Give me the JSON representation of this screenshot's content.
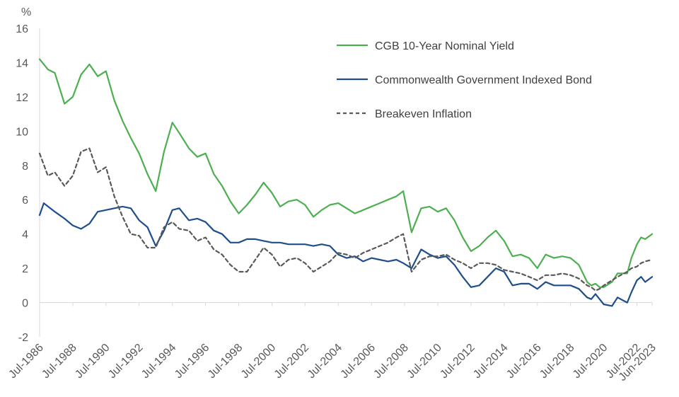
{
  "chart_data": {
    "type": "line",
    "ylabel": "%",
    "ylim": [
      -2,
      16
    ],
    "yticks": [
      -2,
      0,
      2,
      4,
      6,
      8,
      10,
      12,
      14,
      16
    ],
    "xlim": [
      "1986-07",
      "2023-06"
    ],
    "xticks": [
      {
        "date": "1986-07",
        "label": "Jul-1986"
      },
      {
        "date": "1988-07",
        "label": "Jul-1988"
      },
      {
        "date": "1990-07",
        "label": "Jul-1990"
      },
      {
        "date": "1992-07",
        "label": "Jul-1992"
      },
      {
        "date": "1994-07",
        "label": "Jul-1994"
      },
      {
        "date": "1996-07",
        "label": "Jul-1996"
      },
      {
        "date": "1998-07",
        "label": "Jul-1998"
      },
      {
        "date": "2000-07",
        "label": "Jul-2000"
      },
      {
        "date": "2002-07",
        "label": "Jul-2002"
      },
      {
        "date": "2004-07",
        "label": "Jul-2004"
      },
      {
        "date": "2006-07",
        "label": "Jul-2006"
      },
      {
        "date": "2008-07",
        "label": "Jul-2008"
      },
      {
        "date": "2010-07",
        "label": "Jul-2010"
      },
      {
        "date": "2012-07",
        "label": "Jul-2012"
      },
      {
        "date": "2014-07",
        "label": "Jul-2014"
      },
      {
        "date": "2016-07",
        "label": "Jul-2016"
      },
      {
        "date": "2018-07",
        "label": "Jul-2018"
      },
      {
        "date": "2020-07",
        "label": "Jul-2020"
      },
      {
        "date": "2022-07",
        "label": "Jul-2022"
      },
      {
        "date": "2023-06",
        "label": "Jun-2023"
      }
    ],
    "grid": false,
    "legend_position": "top-right",
    "series": [
      {
        "name": "CGB 10-Year Nominal Yield",
        "color": "#4caf50",
        "dash": "solid",
        "points": [
          [
            "1986-07",
            14.2
          ],
          [
            "1987-01",
            13.6
          ],
          [
            "1987-06",
            13.4
          ],
          [
            "1988-01",
            11.6
          ],
          [
            "1988-07",
            12.0
          ],
          [
            "1989-01",
            13.3
          ],
          [
            "1989-07",
            13.9
          ],
          [
            "1990-01",
            13.2
          ],
          [
            "1990-07",
            13.5
          ],
          [
            "1991-01",
            11.8
          ],
          [
            "1991-07",
            10.6
          ],
          [
            "1992-01",
            9.6
          ],
          [
            "1992-07",
            8.7
          ],
          [
            "1993-01",
            7.5
          ],
          [
            "1993-07",
            6.5
          ],
          [
            "1994-01",
            8.8
          ],
          [
            "1994-07",
            10.5
          ],
          [
            "1994-12",
            9.9
          ],
          [
            "1995-07",
            9.0
          ],
          [
            "1996-01",
            8.5
          ],
          [
            "1996-07",
            8.7
          ],
          [
            "1997-01",
            7.5
          ],
          [
            "1997-07",
            6.8
          ],
          [
            "1998-01",
            5.9
          ],
          [
            "1998-07",
            5.2
          ],
          [
            "1999-01",
            5.7
          ],
          [
            "1999-07",
            6.3
          ],
          [
            "2000-01",
            7.0
          ],
          [
            "2000-07",
            6.4
          ],
          [
            "2001-01",
            5.6
          ],
          [
            "2001-07",
            5.9
          ],
          [
            "2002-01",
            6.0
          ],
          [
            "2002-07",
            5.7
          ],
          [
            "2003-01",
            5.0
          ],
          [
            "2003-07",
            5.4
          ],
          [
            "2004-01",
            5.7
          ],
          [
            "2004-07",
            5.8
          ],
          [
            "2005-01",
            5.5
          ],
          [
            "2005-07",
            5.2
          ],
          [
            "2006-01",
            5.4
          ],
          [
            "2006-07",
            5.6
          ],
          [
            "2007-01",
            5.8
          ],
          [
            "2007-07",
            6.0
          ],
          [
            "2008-01",
            6.2
          ],
          [
            "2008-06",
            6.5
          ],
          [
            "2008-12",
            4.1
          ],
          [
            "2009-07",
            5.5
          ],
          [
            "2010-01",
            5.6
          ],
          [
            "2010-07",
            5.3
          ],
          [
            "2011-01",
            5.5
          ],
          [
            "2011-07",
            4.8
          ],
          [
            "2012-01",
            3.8
          ],
          [
            "2012-07",
            3.0
          ],
          [
            "2013-01",
            3.3
          ],
          [
            "2013-07",
            3.8
          ],
          [
            "2014-01",
            4.2
          ],
          [
            "2014-07",
            3.6
          ],
          [
            "2015-01",
            2.7
          ],
          [
            "2015-07",
            2.8
          ],
          [
            "2016-01",
            2.6
          ],
          [
            "2016-07",
            2.0
          ],
          [
            "2017-01",
            2.8
          ],
          [
            "2017-07",
            2.6
          ],
          [
            "2018-01",
            2.7
          ],
          [
            "2018-07",
            2.6
          ],
          [
            "2019-01",
            2.2
          ],
          [
            "2019-07",
            1.2
          ],
          [
            "2019-10",
            1.0
          ],
          [
            "2020-01",
            1.1
          ],
          [
            "2020-04",
            0.9
          ],
          [
            "2020-07",
            0.9
          ],
          [
            "2021-01",
            1.2
          ],
          [
            "2021-05",
            1.7
          ],
          [
            "2021-12",
            1.7
          ],
          [
            "2022-03",
            2.6
          ],
          [
            "2022-07",
            3.4
          ],
          [
            "2022-10",
            3.8
          ],
          [
            "2023-01",
            3.7
          ],
          [
            "2023-06",
            4.0
          ]
        ]
      },
      {
        "name": "Commonwealth Government Indexed Bond",
        "color": "#1f4e8c",
        "dash": "solid",
        "points": [
          [
            "1986-07",
            5.1
          ],
          [
            "1986-10",
            5.8
          ],
          [
            "1987-06",
            5.3
          ],
          [
            "1988-01",
            4.9
          ],
          [
            "1988-07",
            4.5
          ],
          [
            "1989-01",
            4.3
          ],
          [
            "1989-07",
            4.6
          ],
          [
            "1990-01",
            5.3
          ],
          [
            "1990-07",
            5.4
          ],
          [
            "1991-01",
            5.5
          ],
          [
            "1991-07",
            5.6
          ],
          [
            "1992-01",
            5.5
          ],
          [
            "1992-07",
            4.8
          ],
          [
            "1993-01",
            4.4
          ],
          [
            "1993-07",
            3.3
          ],
          [
            "1994-01",
            4.2
          ],
          [
            "1994-07",
            5.4
          ],
          [
            "1994-12",
            5.5
          ],
          [
            "1995-07",
            4.8
          ],
          [
            "1996-01",
            4.9
          ],
          [
            "1996-07",
            4.7
          ],
          [
            "1997-01",
            4.2
          ],
          [
            "1997-07",
            4.0
          ],
          [
            "1998-01",
            3.5
          ],
          [
            "1998-07",
            3.5
          ],
          [
            "1999-01",
            3.7
          ],
          [
            "1999-07",
            3.7
          ],
          [
            "2000-01",
            3.6
          ],
          [
            "2000-07",
            3.5
          ],
          [
            "2001-01",
            3.5
          ],
          [
            "2001-07",
            3.4
          ],
          [
            "2002-01",
            3.4
          ],
          [
            "2002-07",
            3.4
          ],
          [
            "2003-01",
            3.3
          ],
          [
            "2003-07",
            3.4
          ],
          [
            "2004-01",
            3.3
          ],
          [
            "2004-07",
            2.8
          ],
          [
            "2005-01",
            2.6
          ],
          [
            "2005-07",
            2.7
          ],
          [
            "2006-01",
            2.4
          ],
          [
            "2006-07",
            2.6
          ],
          [
            "2007-01",
            2.5
          ],
          [
            "2007-07",
            2.4
          ],
          [
            "2008-01",
            2.5
          ],
          [
            "2008-06",
            2.3
          ],
          [
            "2008-12",
            2.0
          ],
          [
            "2009-07",
            3.1
          ],
          [
            "2010-01",
            2.8
          ],
          [
            "2010-07",
            2.6
          ],
          [
            "2011-01",
            2.7
          ],
          [
            "2011-07",
            2.2
          ],
          [
            "2012-01",
            1.5
          ],
          [
            "2012-07",
            0.9
          ],
          [
            "2013-01",
            1.0
          ],
          [
            "2013-07",
            1.5
          ],
          [
            "2014-01",
            2.0
          ],
          [
            "2014-07",
            1.8
          ],
          [
            "2015-01",
            1.0
          ],
          [
            "2015-07",
            1.1
          ],
          [
            "2016-01",
            1.1
          ],
          [
            "2016-07",
            0.8
          ],
          [
            "2017-01",
            1.2
          ],
          [
            "2017-07",
            1.0
          ],
          [
            "2018-01",
            1.0
          ],
          [
            "2018-07",
            1.0
          ],
          [
            "2019-01",
            0.8
          ],
          [
            "2019-07",
            0.3
          ],
          [
            "2019-10",
            0.2
          ],
          [
            "2020-01",
            0.5
          ],
          [
            "2020-04",
            0.2
          ],
          [
            "2020-07",
            -0.1
          ],
          [
            "2021-01",
            -0.2
          ],
          [
            "2021-05",
            0.3
          ],
          [
            "2021-12",
            0.0
          ],
          [
            "2022-03",
            0.6
          ],
          [
            "2022-07",
            1.3
          ],
          [
            "2022-10",
            1.5
          ],
          [
            "2023-01",
            1.2
          ],
          [
            "2023-06",
            1.5
          ]
        ]
      },
      {
        "name": "Breakeven Inflation",
        "color": "#595959",
        "dash": "dashed",
        "points": [
          [
            "1986-07",
            8.7
          ],
          [
            "1987-01",
            7.4
          ],
          [
            "1987-06",
            7.6
          ],
          [
            "1988-01",
            6.8
          ],
          [
            "1988-07",
            7.4
          ],
          [
            "1989-01",
            8.8
          ],
          [
            "1989-07",
            9.0
          ],
          [
            "1990-01",
            7.6
          ],
          [
            "1990-07",
            7.9
          ],
          [
            "1991-01",
            6.2
          ],
          [
            "1991-07",
            5.0
          ],
          [
            "1992-01",
            4.0
          ],
          [
            "1992-07",
            3.9
          ],
          [
            "1993-01",
            3.2
          ],
          [
            "1993-07",
            3.2
          ],
          [
            "1994-01",
            4.4
          ],
          [
            "1994-07",
            4.7
          ],
          [
            "1994-12",
            4.3
          ],
          [
            "1995-07",
            4.2
          ],
          [
            "1996-01",
            3.6
          ],
          [
            "1996-07",
            3.8
          ],
          [
            "1997-01",
            3.1
          ],
          [
            "1997-07",
            2.8
          ],
          [
            "1998-01",
            2.2
          ],
          [
            "1998-07",
            1.8
          ],
          [
            "1999-01",
            1.8
          ],
          [
            "1999-07",
            2.5
          ],
          [
            "2000-01",
            3.2
          ],
          [
            "2000-07",
            2.8
          ],
          [
            "2001-01",
            2.1
          ],
          [
            "2001-07",
            2.5
          ],
          [
            "2002-01",
            2.6
          ],
          [
            "2002-07",
            2.3
          ],
          [
            "2003-01",
            1.8
          ],
          [
            "2003-07",
            2.1
          ],
          [
            "2004-01",
            2.4
          ],
          [
            "2004-07",
            2.9
          ],
          [
            "2005-01",
            2.8
          ],
          [
            "2005-07",
            2.6
          ],
          [
            "2006-01",
            2.9
          ],
          [
            "2006-07",
            3.1
          ],
          [
            "2007-01",
            3.3
          ],
          [
            "2007-07",
            3.5
          ],
          [
            "2008-01",
            3.8
          ],
          [
            "2008-06",
            4.0
          ],
          [
            "2008-12",
            1.8
          ],
          [
            "2009-07",
            2.5
          ],
          [
            "2010-01",
            2.7
          ],
          [
            "2010-07",
            2.7
          ],
          [
            "2011-01",
            2.8
          ],
          [
            "2011-07",
            2.5
          ],
          [
            "2012-01",
            2.3
          ],
          [
            "2012-07",
            2.0
          ],
          [
            "2013-01",
            2.3
          ],
          [
            "2013-07",
            2.3
          ],
          [
            "2014-01",
            2.2
          ],
          [
            "2014-07",
            1.9
          ],
          [
            "2015-01",
            1.8
          ],
          [
            "2015-07",
            1.7
          ],
          [
            "2016-01",
            1.5
          ],
          [
            "2016-07",
            1.3
          ],
          [
            "2017-01",
            1.6
          ],
          [
            "2017-07",
            1.6
          ],
          [
            "2018-01",
            1.7
          ],
          [
            "2018-07",
            1.6
          ],
          [
            "2019-01",
            1.4
          ],
          [
            "2019-07",
            1.0
          ],
          [
            "2019-10",
            0.9
          ],
          [
            "2020-01",
            0.7
          ],
          [
            "2020-04",
            0.8
          ],
          [
            "2020-07",
            1.0
          ],
          [
            "2021-01",
            1.3
          ],
          [
            "2021-05",
            1.5
          ],
          [
            "2021-12",
            1.8
          ],
          [
            "2022-03",
            2.0
          ],
          [
            "2022-07",
            2.1
          ],
          [
            "2022-10",
            2.3
          ],
          [
            "2023-01",
            2.4
          ],
          [
            "2023-06",
            2.5
          ]
        ]
      }
    ]
  }
}
